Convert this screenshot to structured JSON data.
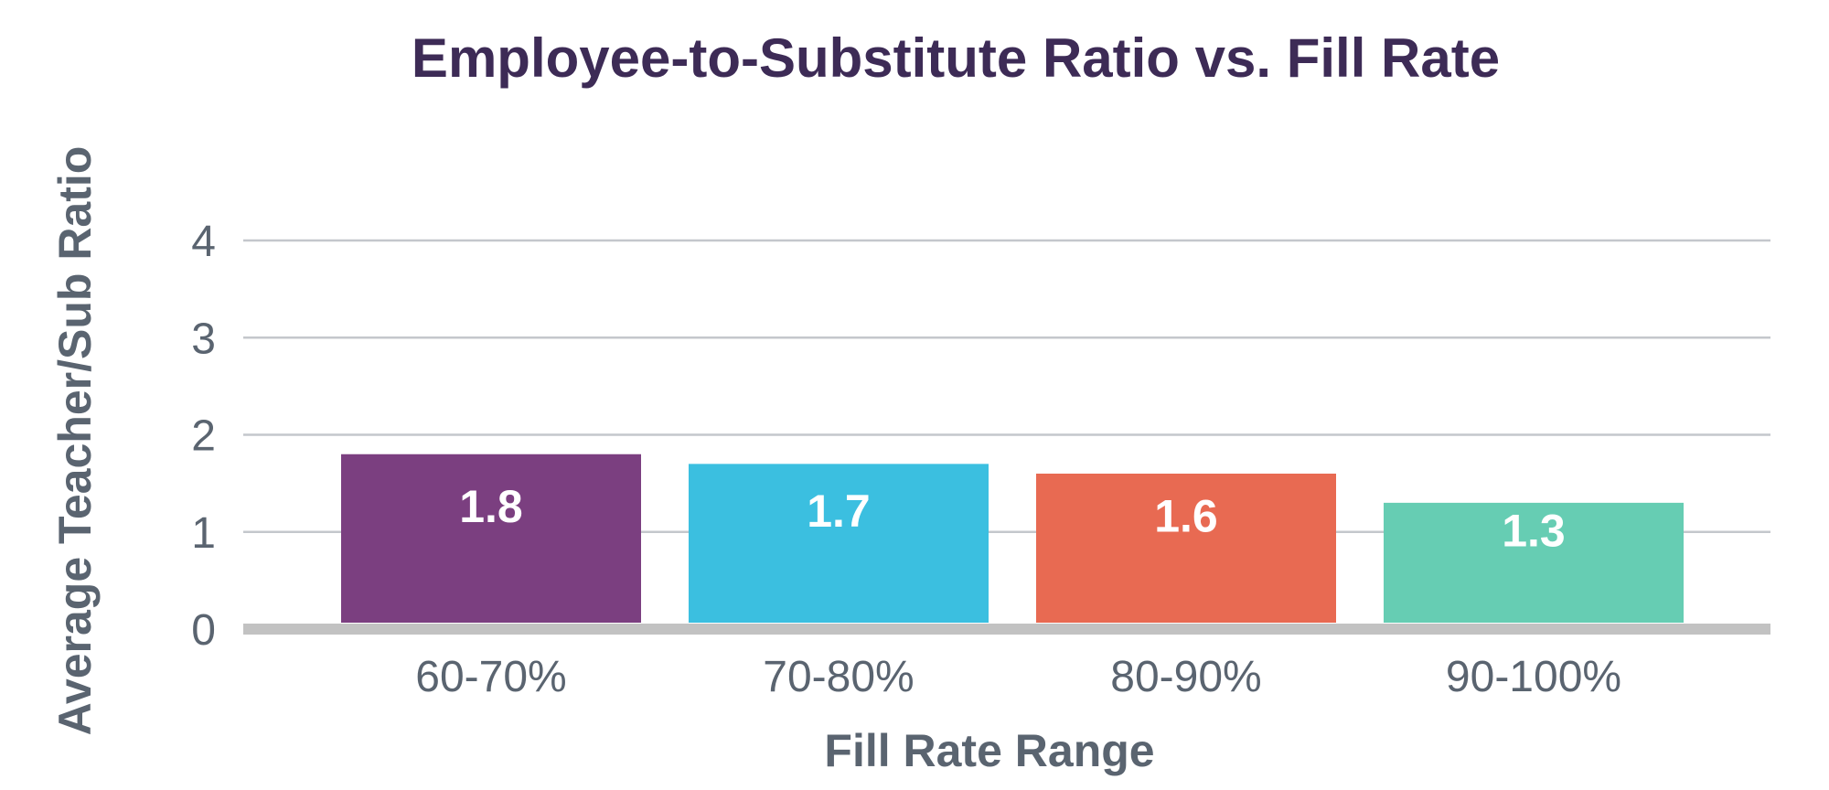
{
  "chart_data": {
    "type": "bar",
    "title": "Employee-to-Substitute Ratio vs. Fill Rate",
    "xlabel": "Fill Rate Range",
    "ylabel": "Average Teacher/Sub Ratio",
    "categories": [
      "60-70%",
      "70-80%",
      "80-90%",
      "90-100%"
    ],
    "values": [
      1.8,
      1.7,
      1.6,
      1.3
    ],
    "data_labels": [
      "1.8",
      "1.7",
      "1.6",
      "1.3"
    ],
    "bar_colors": [
      "#7b3f80",
      "#3bbfe0",
      "#e86a52",
      "#66cdb3"
    ],
    "ylim": [
      0,
      4
    ],
    "y_ticks": [
      "0",
      "1",
      "2",
      "3",
      "4"
    ],
    "grid": true,
    "legend": "none"
  },
  "colors": {
    "title": "#3d2b56",
    "axis_text": "#5a6470",
    "gridline": "#c4c7cc",
    "baseline": "#c2c2c2",
    "bar_label": "#ffffff"
  }
}
